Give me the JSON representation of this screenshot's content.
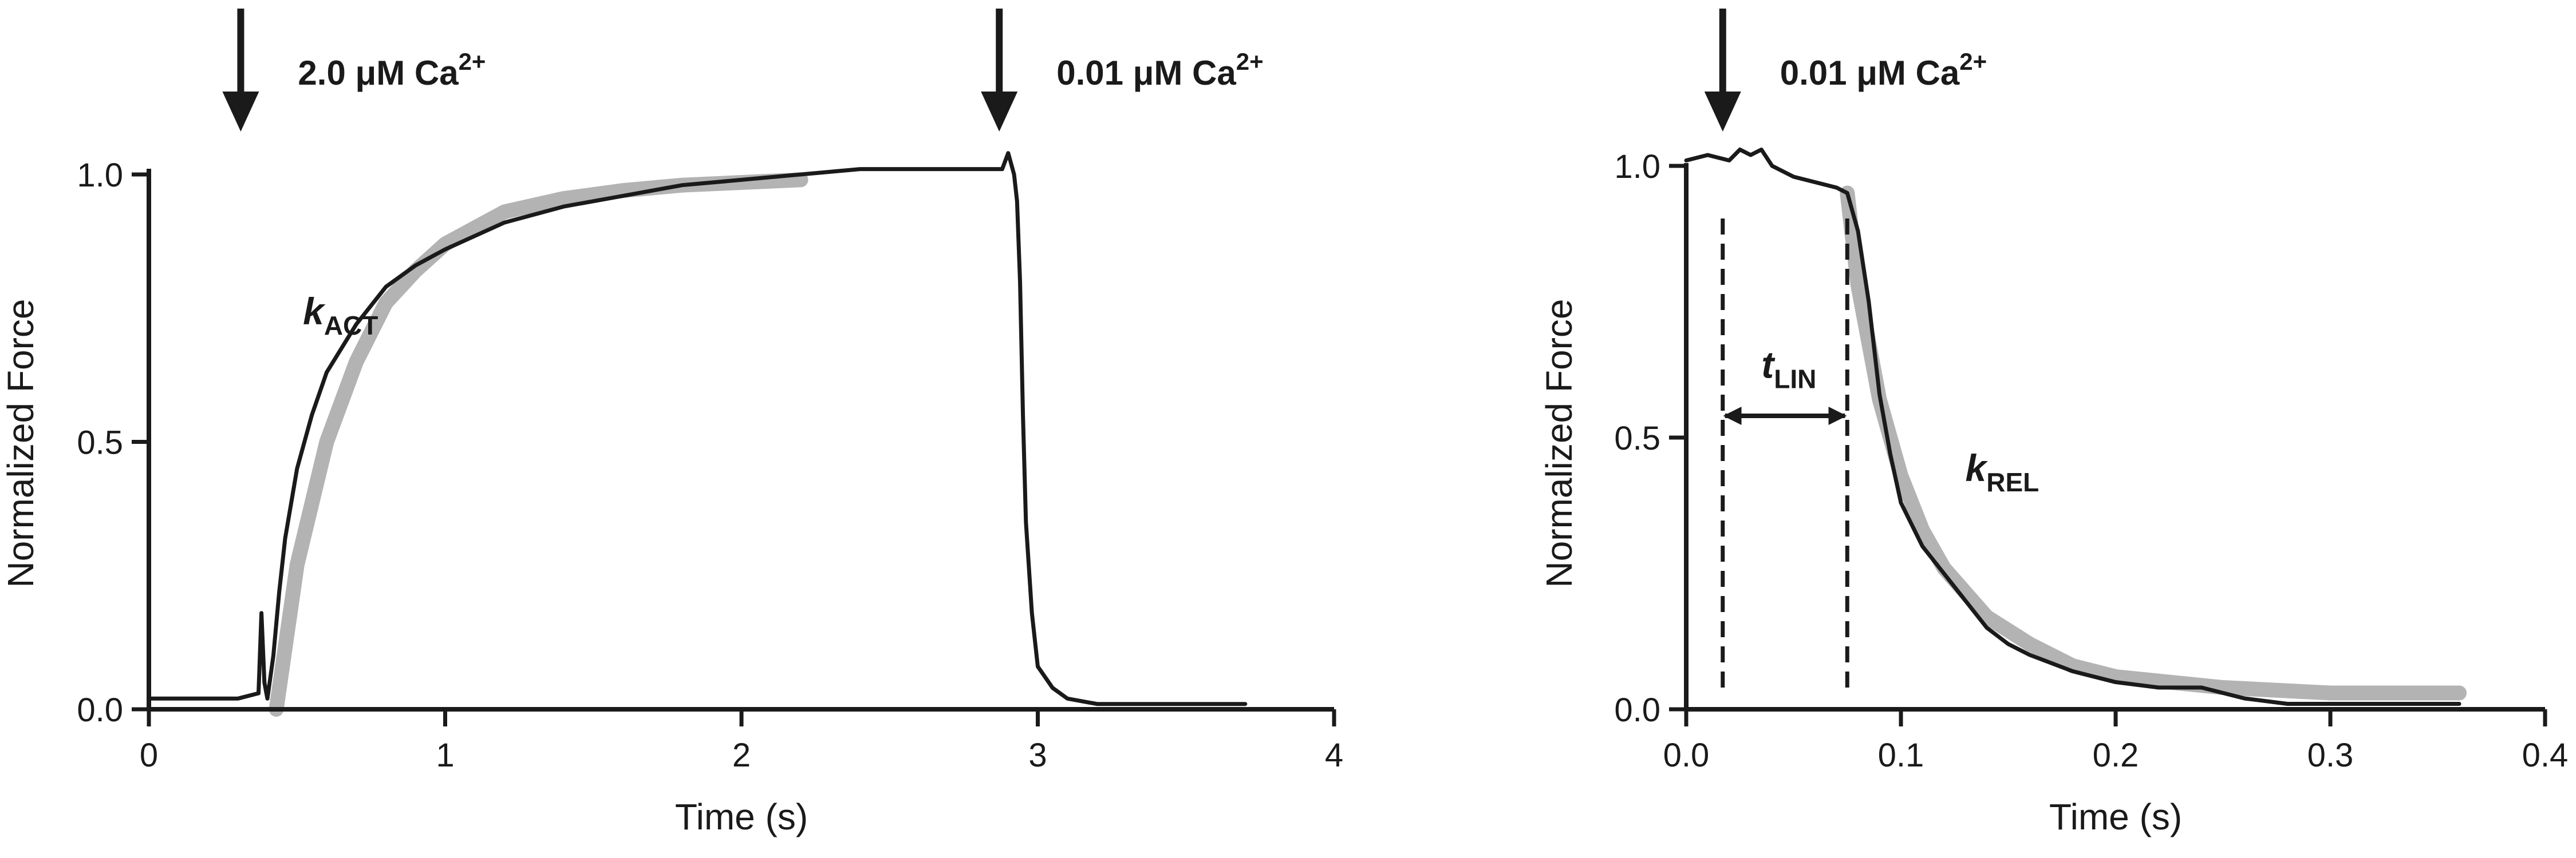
{
  "chart_data": [
    {
      "type": "line",
      "xlabel": "Time (s)",
      "ylabel": "Normalized Force",
      "xlim": [
        0,
        4
      ],
      "ylim": [
        0,
        1.0
      ],
      "xticks": [
        "0",
        "1",
        "2",
        "3",
        "4"
      ],
      "yticks": [
        "0.0",
        "0.5",
        "1.0"
      ],
      "series": [
        {
          "style": "black-trace",
          "x": [
            0.0,
            0.1,
            0.2,
            0.3,
            0.37,
            0.38,
            0.39,
            0.4,
            0.42,
            0.44,
            0.46,
            0.5,
            0.55,
            0.6,
            0.7,
            0.8,
            0.9,
            1.0,
            1.2,
            1.4,
            1.6,
            1.8,
            2.0,
            2.2,
            2.4,
            2.6,
            2.8,
            2.88,
            2.9,
            2.92,
            2.93,
            2.94,
            2.95,
            2.96,
            2.98,
            3.0,
            3.05,
            3.1,
            3.2,
            3.4,
            3.7
          ],
          "y": [
            0.02,
            0.02,
            0.02,
            0.02,
            0.03,
            0.18,
            0.05,
            0.02,
            0.1,
            0.22,
            0.32,
            0.45,
            0.55,
            0.63,
            0.72,
            0.79,
            0.83,
            0.86,
            0.91,
            0.94,
            0.96,
            0.98,
            0.99,
            1.0,
            1.01,
            1.01,
            1.01,
            1.01,
            1.04,
            1.0,
            0.95,
            0.8,
            0.55,
            0.35,
            0.18,
            0.08,
            0.04,
            0.02,
            0.01,
            0.01,
            0.01
          ]
        },
        {
          "style": "gray-fit",
          "x": [
            0.43,
            0.5,
            0.6,
            0.7,
            0.8,
            0.9,
            1.0,
            1.2,
            1.4,
            1.6,
            1.8,
            2.0,
            2.2
          ],
          "y": [
            0.0,
            0.27,
            0.5,
            0.65,
            0.76,
            0.82,
            0.87,
            0.93,
            0.955,
            0.97,
            0.98,
            0.985,
            0.99
          ]
        }
      ],
      "annotations": [
        {
          "type": "arrow",
          "x": 0.31,
          "label": "2.0 μM Ca2+",
          "text": "2.0 μM Ca",
          "sup": "2+"
        },
        {
          "type": "arrow",
          "x": 2.87,
          "label": "0.01 μM Ca2+",
          "text": "0.01 μM Ca",
          "sup": "2+"
        },
        {
          "type": "text",
          "x": 0.52,
          "y": 0.72,
          "label": "kACT",
          "main": "k",
          "sub": "ACT"
        }
      ]
    },
    {
      "type": "line",
      "xlabel": "Time (s)",
      "ylabel": "Normalized Force",
      "xlim": [
        0,
        0.4
      ],
      "ylim": [
        0,
        1.0
      ],
      "xticks": [
        "0.0",
        "0.1",
        "0.2",
        "0.3",
        "0.4"
      ],
      "yticks": [
        "0.0",
        "0.5",
        "1.0"
      ],
      "series": [
        {
          "style": "black-trace",
          "x": [
            0.0,
            0.01,
            0.02,
            0.025,
            0.03,
            0.035,
            0.04,
            0.05,
            0.06,
            0.07,
            0.075,
            0.08,
            0.085,
            0.09,
            0.095,
            0.1,
            0.11,
            0.12,
            0.13,
            0.14,
            0.15,
            0.16,
            0.18,
            0.2,
            0.22,
            0.24,
            0.26,
            0.28,
            0.3,
            0.33,
            0.36
          ],
          "y": [
            1.01,
            1.02,
            1.01,
            1.03,
            1.02,
            1.03,
            1.0,
            0.98,
            0.97,
            0.96,
            0.95,
            0.88,
            0.75,
            0.58,
            0.47,
            0.38,
            0.3,
            0.25,
            0.2,
            0.15,
            0.12,
            0.1,
            0.07,
            0.05,
            0.04,
            0.04,
            0.02,
            0.01,
            0.01,
            0.01,
            0.01
          ]
        },
        {
          "style": "gray-fit",
          "x": [
            0.075,
            0.08,
            0.09,
            0.1,
            0.11,
            0.12,
            0.14,
            0.16,
            0.18,
            0.2,
            0.25,
            0.3,
            0.36
          ],
          "y": [
            0.95,
            0.78,
            0.57,
            0.43,
            0.33,
            0.26,
            0.17,
            0.12,
            0.08,
            0.06,
            0.04,
            0.03,
            0.03
          ]
        }
      ],
      "annotations": [
        {
          "type": "arrow",
          "x": 0.017,
          "label": "0.01 μM Ca2+",
          "text": "0.01 μM Ca",
          "sup": "2+"
        },
        {
          "type": "vline",
          "x": 0.017,
          "y0": 0.04,
          "y1": 0.91,
          "style": "dashed"
        },
        {
          "type": "vline",
          "x": 0.075,
          "y0": 0.04,
          "y1": 0.91,
          "style": "dashed"
        },
        {
          "type": "span-arrow",
          "x0": 0.017,
          "x1": 0.075,
          "y": 0.54
        },
        {
          "type": "text",
          "x": 0.035,
          "y": 0.61,
          "label": "tLIN",
          "main": "t",
          "sub": "LIN"
        },
        {
          "type": "text",
          "x": 0.13,
          "y": 0.42,
          "label": "kREL",
          "main": "k",
          "sub": "REL"
        }
      ]
    }
  ]
}
